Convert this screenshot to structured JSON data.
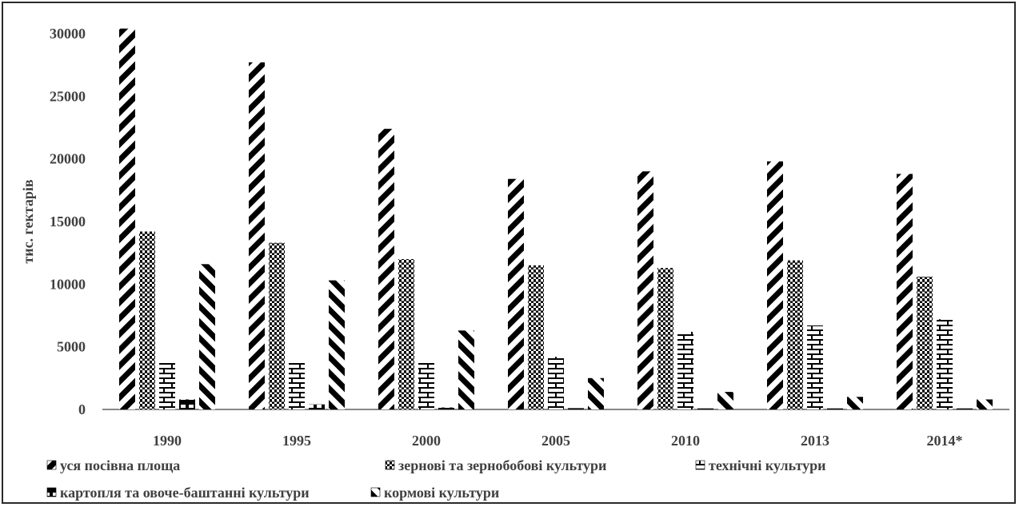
{
  "chart_data": {
    "type": "bar",
    "title": "",
    "xlabel": "",
    "ylabel": "тис. гектарів",
    "ylim": [
      0,
      30000
    ],
    "yticks": [
      0,
      5000,
      10000,
      15000,
      20000,
      25000,
      30000
    ],
    "grid": false,
    "legend_position": "bottom",
    "categories": [
      "1990",
      "1995",
      "2000",
      "2005",
      "2010",
      "2013",
      "2014*"
    ],
    "series": [
      {
        "name": "уся посівна площа",
        "pattern": "diag-back",
        "values": [
          30400,
          27700,
          22400,
          18400,
          19000,
          19800,
          18800
        ]
      },
      {
        "name": "зернові та  зернобобові культури",
        "pattern": "checker",
        "values": [
          14200,
          13300,
          12000,
          11500,
          11300,
          11900,
          10600
        ]
      },
      {
        "name": "технічні культури",
        "pattern": "brick",
        "values": [
          3700,
          3700,
          3700,
          4200,
          6200,
          6700,
          7200
        ]
      },
      {
        "name": "картопля та овоче-баштанні культури",
        "pattern": "blocks",
        "values": [
          800,
          400,
          150,
          100,
          80,
          80,
          80
        ]
      },
      {
        "name": "кормові культури",
        "pattern": "diag-fwd",
        "values": [
          11600,
          10300,
          6300,
          2500,
          1400,
          1000,
          800
        ]
      }
    ],
    "colors": {
      "ink": "#000000",
      "text": "#404040",
      "axis": "#404040",
      "border": "#2a2a2a"
    }
  }
}
